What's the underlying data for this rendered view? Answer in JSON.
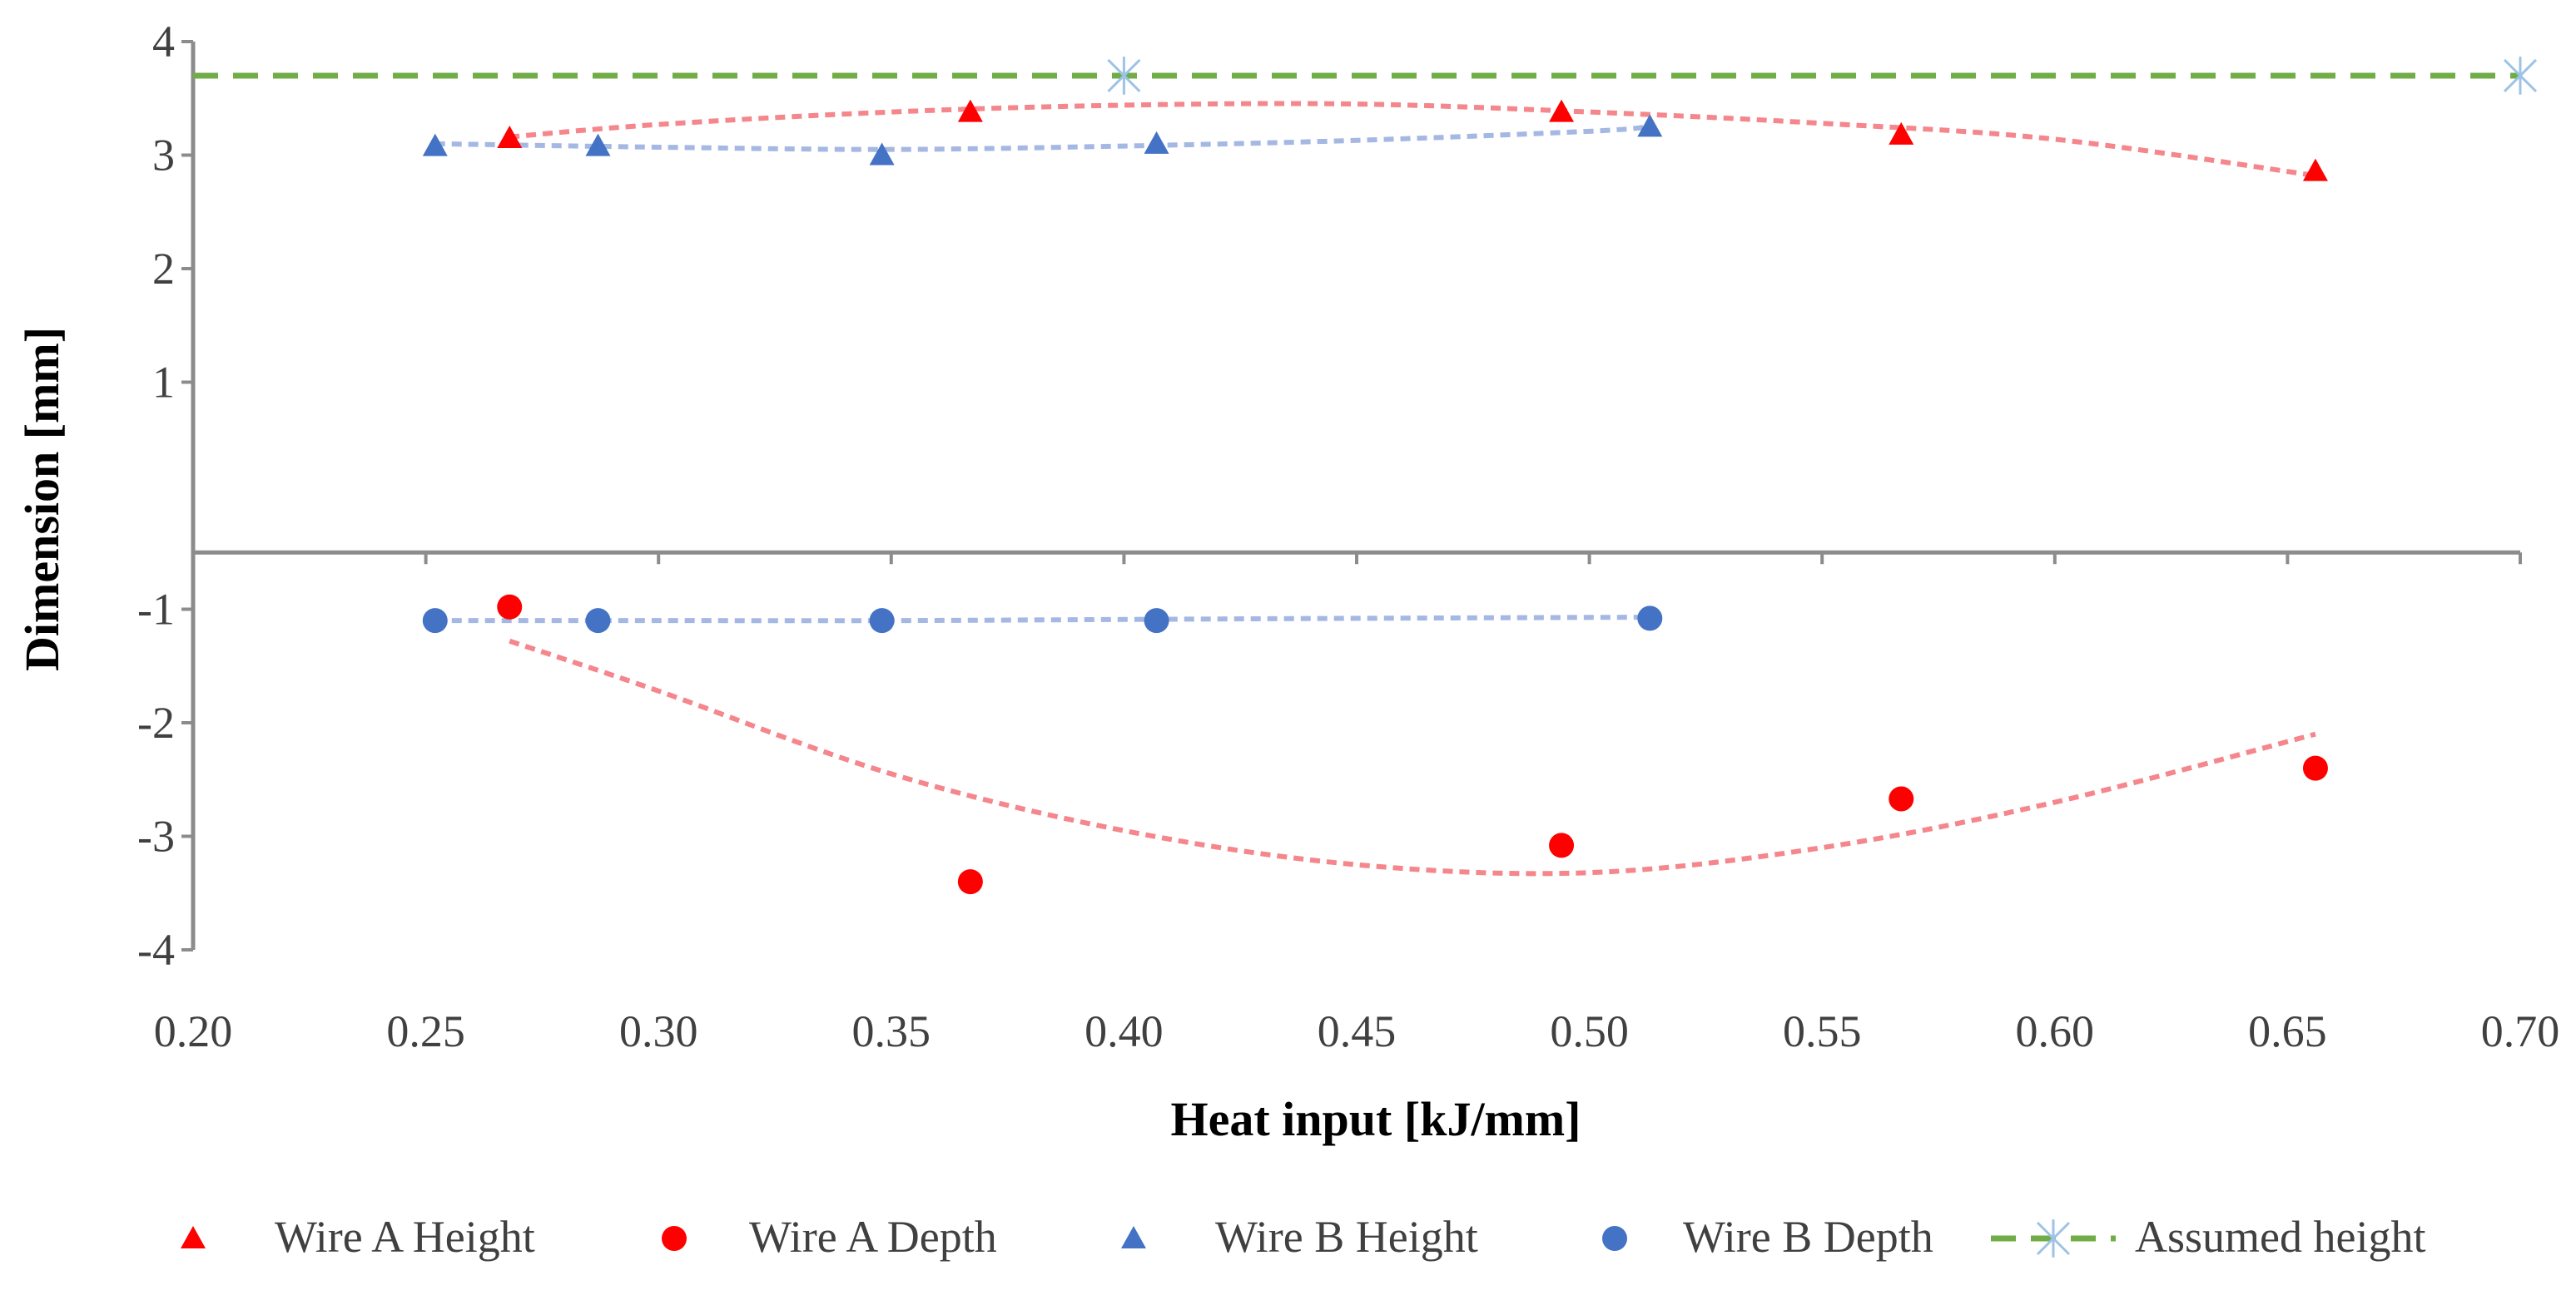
{
  "chart_data": {
    "type": "scatter",
    "title": "",
    "xlabel": "Heat input [kJ/mm]",
    "ylabel": "Dimension [mm]",
    "xlim": [
      0.2,
      0.7
    ],
    "ylim": [
      -4,
      4
    ],
    "x_ticks": [
      "0.20",
      "0.25",
      "0.30",
      "0.35",
      "0.40",
      "0.45",
      "0.50",
      "0.55",
      "0.60",
      "0.65",
      "0.70"
    ],
    "y_ticks": [
      "-4",
      "-3",
      "-2",
      "-1",
      "1",
      "2",
      "3",
      "4"
    ],
    "grid": false,
    "legend_position": "bottom",
    "series": [
      {
        "name": "Wire A Height",
        "marker": "triangle",
        "color": "#ff0000",
        "points": [
          [
            0.268,
            3.15
          ],
          [
            0.367,
            3.38
          ],
          [
            0.494,
            3.38
          ],
          [
            0.567,
            3.18
          ],
          [
            0.656,
            2.86
          ]
        ]
      },
      {
        "name": "Wire A Depth",
        "marker": "circle",
        "color": "#ff0000",
        "points": [
          [
            0.268,
            -0.98
          ],
          [
            0.367,
            -3.4
          ],
          [
            0.494,
            -3.08
          ],
          [
            0.567,
            -2.67
          ],
          [
            0.656,
            -2.4
          ]
        ]
      },
      {
        "name": "Wire B Height",
        "marker": "triangle",
        "color": "#4472c4",
        "points": [
          [
            0.252,
            3.08
          ],
          [
            0.287,
            3.08
          ],
          [
            0.348,
            3.0
          ],
          [
            0.407,
            3.1
          ],
          [
            0.513,
            3.25
          ]
        ]
      },
      {
        "name": "Wire B Depth",
        "marker": "circle",
        "color": "#4472c4",
        "points": [
          [
            0.252,
            -1.1
          ],
          [
            0.287,
            -1.1
          ],
          [
            0.348,
            -1.1
          ],
          [
            0.407,
            -1.1
          ],
          [
            0.513,
            -1.08
          ]
        ]
      },
      {
        "name": "Assumed height",
        "marker": "asterisk",
        "line": "dashed",
        "color": "#70ad47",
        "marker_color": "#9dc3e6",
        "points": [
          [
            0.4,
            3.7
          ],
          [
            0.7,
            3.7
          ]
        ]
      }
    ],
    "trendlines": [
      {
        "of": "Wire A Height",
        "type": "polynomial",
        "color": "#f4868c",
        "points": [
          [
            0.268,
            3.16
          ],
          [
            0.3,
            3.27
          ],
          [
            0.35,
            3.38
          ],
          [
            0.4,
            3.44
          ],
          [
            0.45,
            3.45
          ],
          [
            0.5,
            3.38
          ],
          [
            0.55,
            3.28
          ],
          [
            0.6,
            3.14
          ],
          [
            0.656,
            2.82
          ]
        ]
      },
      {
        "of": "Wire A Depth",
        "type": "polynomial",
        "color": "#f4868c",
        "points": [
          [
            0.268,
            -1.28
          ],
          [
            0.3,
            -1.72
          ],
          [
            0.35,
            -2.45
          ],
          [
            0.4,
            -2.95
          ],
          [
            0.45,
            -3.25
          ],
          [
            0.5,
            -3.32
          ],
          [
            0.55,
            -3.1
          ],
          [
            0.6,
            -2.7
          ],
          [
            0.656,
            -2.1
          ]
        ]
      },
      {
        "of": "Wire B Height",
        "type": "polynomial",
        "color": "#a4b8e3",
        "points": [
          [
            0.252,
            3.1
          ],
          [
            0.3,
            3.07
          ],
          [
            0.35,
            3.05
          ],
          [
            0.4,
            3.08
          ],
          [
            0.45,
            3.13
          ],
          [
            0.5,
            3.21
          ],
          [
            0.513,
            3.25
          ]
        ]
      },
      {
        "of": "Wire B Depth",
        "type": "polynomial",
        "color": "#a4b8e3",
        "points": [
          [
            0.252,
            -1.1
          ],
          [
            0.3,
            -1.1
          ],
          [
            0.35,
            -1.1
          ],
          [
            0.4,
            -1.09
          ],
          [
            0.45,
            -1.08
          ],
          [
            0.513,
            -1.07
          ]
        ]
      }
    ]
  }
}
